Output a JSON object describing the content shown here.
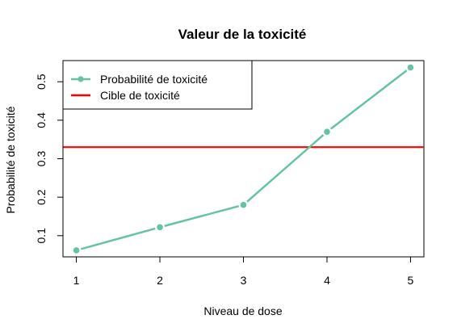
{
  "chart_data": {
    "type": "line",
    "title": "Valeur de la toxicité",
    "xlabel": "Niveau de dose",
    "ylabel": "Probabilité de toxicité",
    "x": [
      1,
      2,
      3,
      4,
      5
    ],
    "xlim": [
      0.84,
      5.16
    ],
    "ylim": [
      0.045,
      0.555
    ],
    "x_ticks": [
      1,
      2,
      3,
      4,
      5
    ],
    "x_tick_labels": [
      "1",
      "2",
      "3",
      "4",
      "5"
    ],
    "y_ticks": [
      0.1,
      0.2,
      0.3,
      0.4,
      0.5
    ],
    "y_tick_labels": [
      "0.1",
      "0.2",
      "0.3",
      "0.4",
      "0.5"
    ],
    "series": [
      {
        "name": "Probabilité de toxicité",
        "values": [
          0.062,
          0.122,
          0.18,
          0.37,
          0.537
        ],
        "color": "#66c2a5"
      }
    ],
    "reference_line": {
      "name": "Cible de toxicité",
      "value": 0.33,
      "color": "#ff0000"
    },
    "legend": {
      "position": "top-left"
    },
    "grid": false
  }
}
